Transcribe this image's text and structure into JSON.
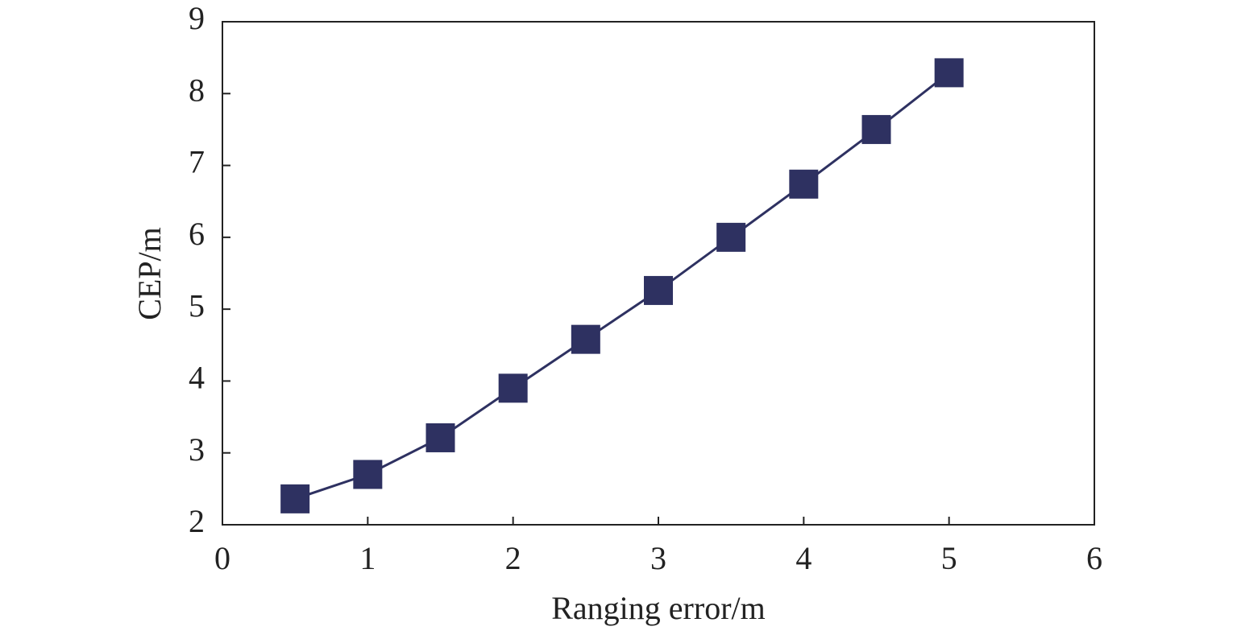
{
  "chart_data": {
    "type": "line",
    "xlabel": "Ranging error/m",
    "ylabel": "CEP/m",
    "x": [
      0.5,
      1,
      1.5,
      2,
      2.5,
      3,
      3.5,
      4,
      4.5,
      5
    ],
    "series": [
      {
        "color": "#2e3161",
        "values": [
          2.36,
          2.7,
          3.21,
          3.9,
          4.58,
          5.26,
          6.0,
          6.74,
          7.5,
          8.29
        ]
      }
    ],
    "xlim": [
      0,
      6
    ],
    "xticks": [
      0,
      1,
      2,
      3,
      4,
      5,
      6
    ],
    "ylim": [
      2,
      9
    ],
    "yticks": [
      2,
      3,
      4,
      5,
      6,
      7,
      8,
      9
    ],
    "grid": false
  }
}
